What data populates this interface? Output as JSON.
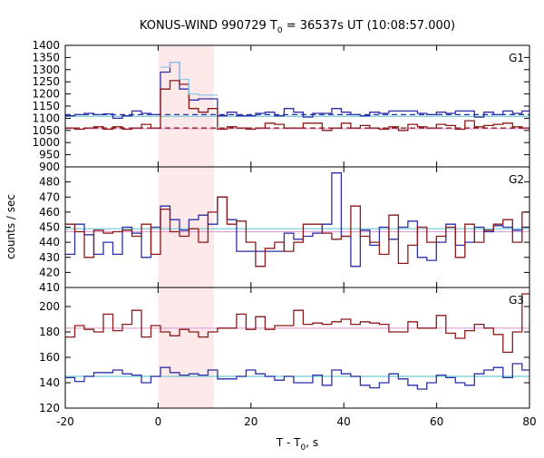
{
  "chart_data": {
    "type": "line",
    "title": {
      "main": "KONUS-WIND 990729 T",
      "sub": "0",
      "rest": " = 36537s UT (10:08:57.000)"
    },
    "xlabel": {
      "main": "T - T",
      "sub": "0",
      "rest": ", s"
    },
    "ylabel": "counts / sec",
    "xlim": [
      -20,
      80
    ],
    "xticks": [
      -20,
      0,
      20,
      40,
      60,
      80
    ],
    "highlight_interval": [
      0,
      12
    ],
    "panels": [
      {
        "label": "G1",
        "ylim": [
          900,
          1400
        ],
        "yticks": [
          900,
          950,
          1000,
          1050,
          1100,
          1150,
          1200,
          1250,
          1300,
          1350,
          1400
        ],
        "bin_edges": [
          -20,
          -17.95,
          -15.9,
          -13.85,
          -11.8,
          -9.75,
          -7.7,
          -5.65,
          -3.6,
          -1.55,
          0.5,
          2.55,
          4.6,
          6.65,
          8.7,
          10.75,
          12.8,
          14.85,
          16.9,
          18.95,
          21,
          23.05,
          25.1,
          27.15,
          29.2,
          31.25,
          33.3,
          35.35,
          37.4,
          39.45,
          41.5,
          43.55,
          45.6,
          47.65,
          49.7,
          51.75,
          53.8,
          55.85,
          57.9,
          59.95,
          62,
          64.05,
          66.1,
          68.15,
          70.2,
          72.25,
          74.3,
          76.35,
          78.4,
          80
        ],
        "series": [
          {
            "color": "#2b2fa8",
            "values": [
              1110,
              1115,
              1120,
              1115,
              1118,
              1100,
              1110,
              1130,
              1120,
              1115,
              1290,
              1330,
              1220,
              1175,
              1180,
              1180,
              1110,
              1125,
              1110,
              1110,
              1120,
              1125,
              1110,
              1140,
              1125,
              1105,
              1120,
              1120,
              1140,
              1125,
              1115,
              1110,
              1125,
              1120,
              1130,
              1130,
              1130,
              1120,
              1115,
              1125,
              1120,
              1130,
              1130,
              1105,
              1125,
              1115,
              1130,
              1120,
              1130
            ]
          },
          {
            "color": "#8b1a1a",
            "values": [
              1060,
              1055,
              1060,
              1065,
              1055,
              1065,
              1055,
              1060,
              1075,
              1060,
              1220,
              1255,
              1240,
              1140,
              1125,
              1140,
              1055,
              1065,
              1060,
              1055,
              1060,
              1080,
              1075,
              1060,
              1060,
              1080,
              1080,
              1050,
              1060,
              1080,
              1060,
              1070,
              1060,
              1055,
              1065,
              1050,
              1075,
              1065,
              1060,
              1075,
              1070,
              1055,
              1090,
              1065,
              1070,
              1075,
              1080,
              1065,
              1060
            ]
          },
          {
            "color": "#90c8e6",
            "values": [
              null,
              null,
              null,
              null,
              null,
              null,
              null,
              null,
              null,
              null,
              1310,
              1330,
              1260,
              1200,
              1195,
              1195,
              null,
              null,
              null,
              null,
              null,
              null,
              null,
              null,
              null,
              null,
              null,
              null,
              null,
              null,
              null,
              null,
              null,
              null,
              null,
              null,
              null,
              null,
              null,
              null,
              null,
              null,
              null,
              null,
              null,
              null,
              null,
              null,
              null
            ]
          }
        ],
        "fits": [
          {
            "color": "#6fc9d4",
            "value": 1108,
            "dash": false
          },
          {
            "color": "#2b2fa8",
            "value": 1115,
            "dash": true
          },
          {
            "color": "#e0a0d8",
            "value": 1057,
            "dash": false
          },
          {
            "color": "#8b1a1a",
            "value": 1060,
            "dash": true
          }
        ]
      },
      {
        "label": "G2",
        "ylim": [
          410,
          490
        ],
        "yticks": [
          410,
          420,
          430,
          440,
          450,
          460,
          470,
          480
        ],
        "bin_edges": [
          -20,
          -17.95,
          -15.9,
          -13.85,
          -11.8,
          -9.75,
          -7.7,
          -5.65,
          -3.6,
          -1.55,
          0.5,
          2.55,
          4.6,
          6.65,
          8.7,
          10.75,
          12.8,
          14.85,
          16.9,
          18.95,
          21,
          23.05,
          25.1,
          27.15,
          29.2,
          31.25,
          33.3,
          35.35,
          37.4,
          39.45,
          41.5,
          43.55,
          45.6,
          47.65,
          49.7,
          51.75,
          53.8,
          55.85,
          57.9,
          59.95,
          62,
          64.05,
          66.1,
          68.15,
          70.2,
          72.25,
          74.3,
          76.35,
          78.4,
          80
        ],
        "series": [
          {
            "color": "#2b2fa8",
            "values": [
              432,
              452,
              445,
              432,
              440,
              432,
              450,
              446,
              430,
              450,
              464,
              455,
              448,
              455,
              458,
              452,
              470,
              455,
              434,
              434,
              434,
              434,
              434,
              446,
              442,
              444,
              446,
              452,
              486,
              444,
              424,
              448,
              438,
              450,
              442,
              450,
              454,
              430,
              428,
              440,
              452,
              438,
              440,
              450,
              447,
              451,
              450,
              448,
              450
            ]
          },
          {
            "color": "#8b1a1a",
            "values": [
              452,
              447,
              430,
              448,
              446,
              447,
              448,
              444,
              452,
              432,
              462,
              447,
              444,
              449,
              440,
              460,
              470,
              452,
              454,
              440,
              424,
              436,
              440,
              434,
              440,
              452,
              452,
              446,
              442,
              444,
              464,
              444,
              440,
              432,
              458,
              426,
              438,
              450,
              440,
              444,
              450,
              430,
              452,
              440,
              448,
              452,
              455,
              440,
              460
            ]
          }
        ],
        "fits": [
          {
            "color": "#6fc9d4",
            "value": 449,
            "dash": false
          },
          {
            "color": "#e0a0d8",
            "value": 447,
            "dash": false
          }
        ]
      },
      {
        "label": "G3",
        "ylim": [
          120,
          215
        ],
        "yticks": [
          120,
          140,
          160,
          180,
          200
        ],
        "bin_edges": [
          -20,
          -17.95,
          -15.9,
          -13.85,
          -11.8,
          -9.75,
          -7.7,
          -5.65,
          -3.6,
          -1.55,
          0.5,
          2.55,
          4.6,
          6.65,
          8.7,
          10.75,
          12.8,
          14.85,
          16.9,
          18.95,
          21,
          23.05,
          25.1,
          27.15,
          29.2,
          31.25,
          33.3,
          35.35,
          37.4,
          39.45,
          41.5,
          43.55,
          45.6,
          47.65,
          49.7,
          51.75,
          53.8,
          55.85,
          57.9,
          59.95,
          62,
          64.05,
          66.1,
          68.15,
          70.2,
          72.25,
          74.3,
          76.35,
          78.4,
          80
        ],
        "series": [
          {
            "color": "#8b1a1a",
            "values": [
              176,
              185,
              182,
              180,
              194,
              181,
              186,
              197,
              176,
              185,
              180,
              177,
              182,
              180,
              176,
              180,
              183,
              183,
              194,
              182,
              192,
              182,
              185,
              185,
              197,
              186,
              187,
              186,
              188,
              190,
              186,
              188,
              187,
              186,
              180,
              180,
              188,
              183,
              183,
              193,
              179,
              175,
              181,
              186,
              183,
              178,
              164,
              180,
              210
            ]
          },
          {
            "color": "#2b2fa8",
            "values": [
              144,
              141,
              145,
              148,
              148,
              150,
              147,
              146,
              140,
              145,
              152,
              148,
              146,
              147,
              146,
              150,
              143,
              143,
              145,
              150,
              147,
              145,
              142,
              145,
              140,
              140,
              146,
              138,
              150,
              147,
              145,
              138,
              136,
              140,
              147,
              143,
              138,
              135,
              140,
              146,
              144,
              140,
              138,
              147,
              150,
              152,
              144,
              155,
              150
            ]
          }
        ],
        "fits": [
          {
            "color": "#e0a0d8",
            "value": 183,
            "dash": false
          },
          {
            "color": "#6fc9d4",
            "value": 145,
            "dash": false
          }
        ]
      }
    ]
  }
}
